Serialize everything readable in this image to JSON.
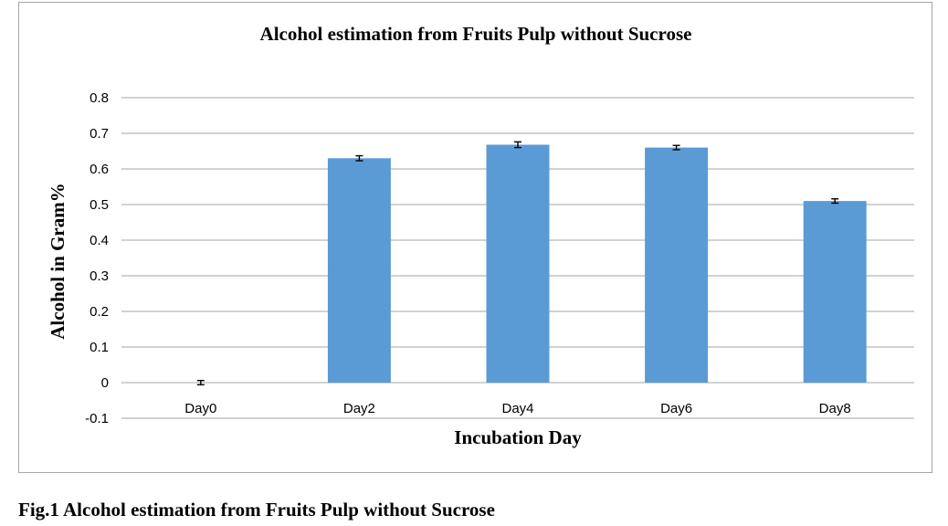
{
  "caption": "Fig.1 Alcohol estimation  from Fruits Pulp without Sucrose",
  "chart_data": {
    "type": "bar",
    "title": "Alcohol estimation  from Fruits Pulp without  Sucrose",
    "xlabel": "Incubation  Day",
    "ylabel": "Alcohol in Gram%",
    "categories": [
      "Day0",
      "Day2",
      "Day4",
      "Day6",
      "Day8"
    ],
    "series": [
      {
        "values": [
          0,
          0.63,
          0.668,
          0.66,
          0.51
        ],
        "error": [
          0.006,
          0.007,
          0.008,
          0.006,
          0.006
        ]
      }
    ],
    "ylim": [
      -0.1,
      0.8
    ],
    "yticks": [
      -0.1,
      0,
      0.1,
      0.2,
      0.3,
      0.4,
      0.5,
      0.6,
      0.7,
      0.8
    ],
    "ytick_labels": [
      "-0.1",
      "0",
      "0.1",
      "0.2",
      "0.3",
      "0.4",
      "0.5",
      "0.6",
      "0.7",
      "0.8"
    ],
    "grid": true,
    "legend": "none",
    "bar_color": "#5b9bd5",
    "grid_color": "#a6a6a6"
  }
}
